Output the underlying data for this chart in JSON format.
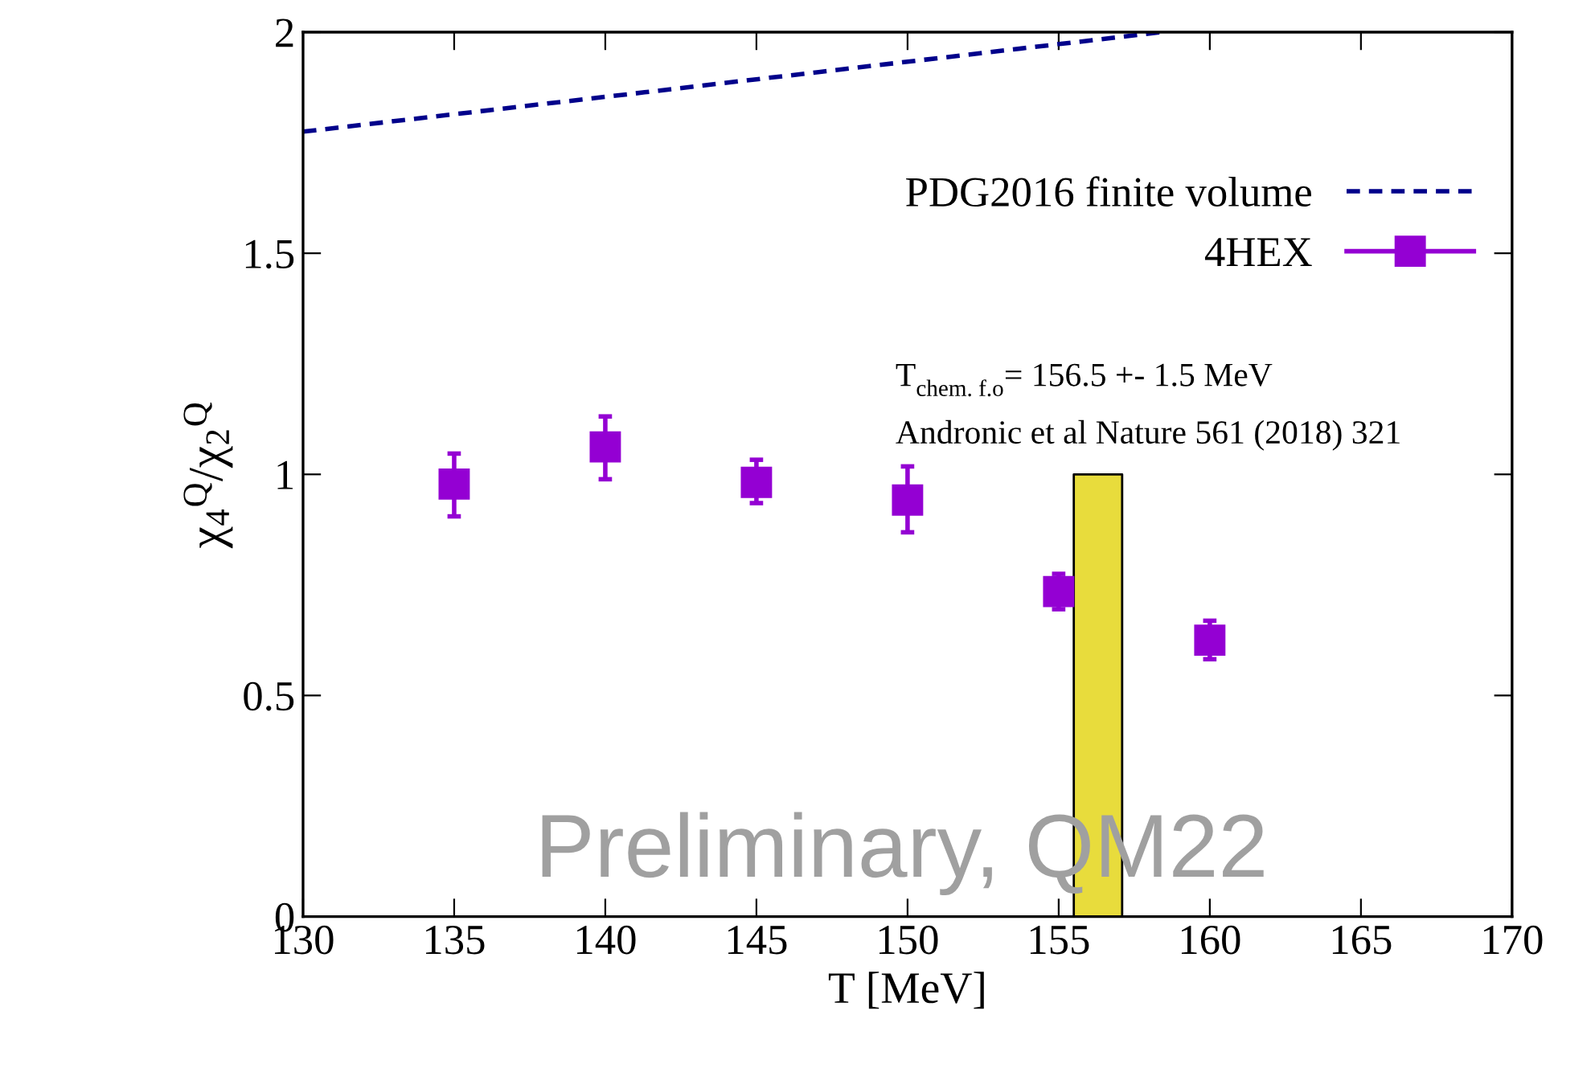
{
  "chart_data": {
    "type": "scatter",
    "xlabel": "T [MeV]",
    "ylabel": "χ$_{4}$$^{Q}$/χ$_{2}$$^{Q}$",
    "xlim": [
      130,
      170
    ],
    "xticks": [
      130,
      135,
      140,
      145,
      150,
      155,
      160,
      165,
      170
    ],
    "ylim": [
      0,
      2
    ],
    "yticks": [
      0,
      0.5,
      1,
      1.5,
      2
    ],
    "series": [
      {
        "name": "PDG2016 finite volume",
        "type": "line",
        "color": "#00008b",
        "line_style": "dashed",
        "marker": "none",
        "x": [
          130,
          141.3,
          158.4
        ],
        "values": [
          1.775,
          1.864,
          2.0
        ]
      },
      {
        "name": "4HEX",
        "color": "#9400d3",
        "marker": "square",
        "x": [
          135,
          140,
          145,
          150,
          155,
          160
        ],
        "values": [
          0.978,
          1.062,
          0.982,
          0.942,
          0.735,
          0.625
        ],
        "errors": [
          [
            0.905,
            1.047
          ],
          [
            0.989,
            1.131
          ],
          [
            0.935,
            1.033
          ],
          [
            0.869,
            1.018
          ],
          [
            0.695,
            0.775
          ],
          [
            0.582,
            0.669
          ]
        ]
      },
      {
        "type": "area",
        "color": "#e8dc3c",
        "x": [
          155.5,
          157.1
        ],
        "values": [
          1,
          1
        ]
      }
    ],
    "legend": "top right",
    "grid": false,
    "annotations": [
      "T$_{chem. f.o}$= 156.5 +- 1.5 MeV",
      "Andronic et al Nature 561 (2018) 321",
      "Preliminary, QM22"
    ]
  }
}
